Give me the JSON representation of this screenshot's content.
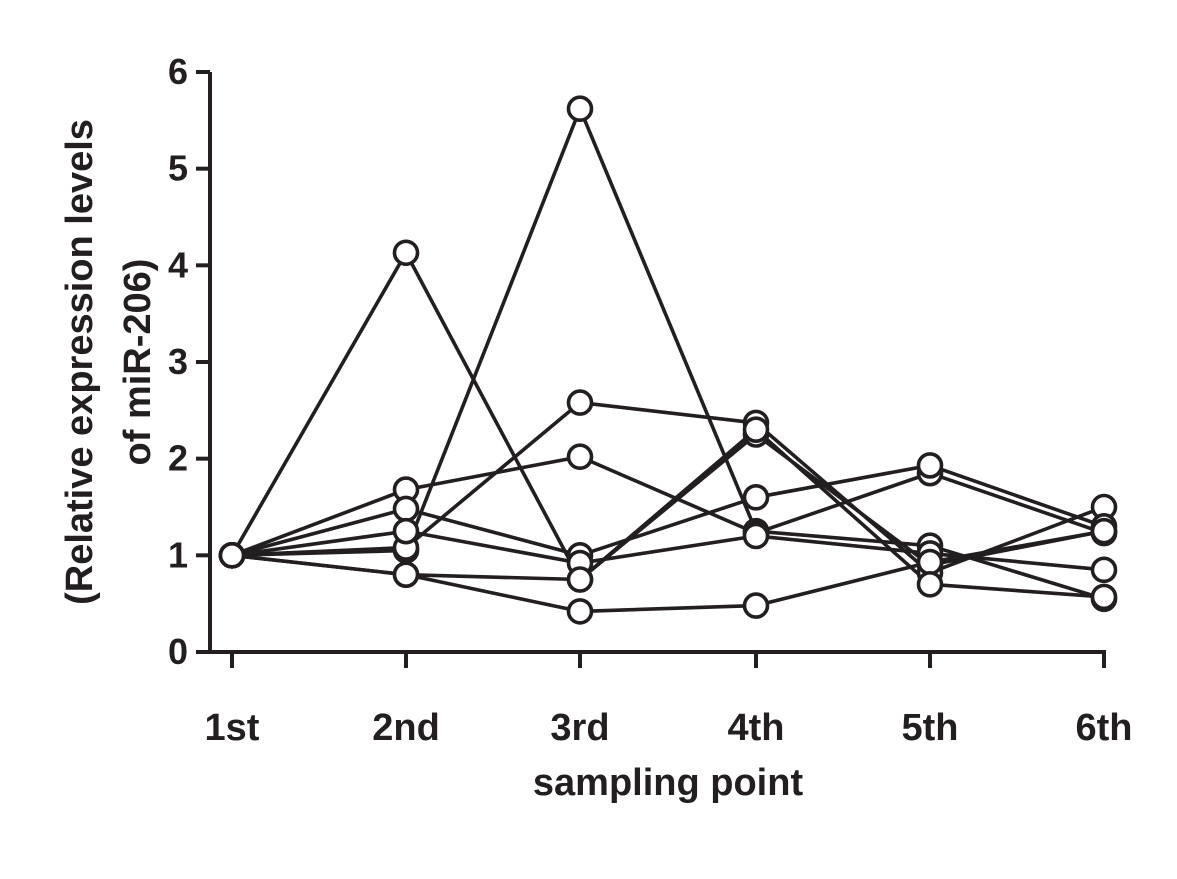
{
  "chart_data": {
    "type": "line",
    "title": "",
    "xlabel": "sampling point",
    "ylabel_lines": [
      "(Relative expression levels",
      "of miR-206)"
    ],
    "categories": [
      "1st",
      "2nd",
      "3rd",
      "4th",
      "5th",
      "6th"
    ],
    "ylim": [
      0,
      6
    ],
    "yticks": [
      "0",
      "1",
      "2",
      "3",
      "4",
      "5",
      "6"
    ],
    "grid": false,
    "legend": "none",
    "marker": "open-circle",
    "line_color": "#231f20",
    "series": [
      {
        "values": [
          1,
          4.13,
          0.75,
          2.25,
          0.9,
          1.25
        ]
      },
      {
        "values": [
          1,
          1.05,
          5.62,
          1.25,
          1.1,
          0.55
        ]
      },
      {
        "values": [
          1,
          1.08,
          2.58,
          2.37,
          0.82,
          1.5
        ]
      },
      {
        "values": [
          1,
          1.68,
          2.02,
          1.23,
          1.85,
          1.23
        ]
      },
      {
        "values": [
          1,
          1.48,
          1.0,
          1.6,
          1.93,
          1.3
        ]
      },
      {
        "values": [
          1,
          1.25,
          0.92,
          1.2,
          1.02,
          0.85
        ]
      },
      {
        "values": [
          1,
          0.8,
          0.42,
          0.48,
          0.93,
          1.25
        ]
      },
      {
        "values": [
          1,
          0.8,
          0.75,
          2.3,
          0.7,
          0.57
        ]
      }
    ]
  }
}
